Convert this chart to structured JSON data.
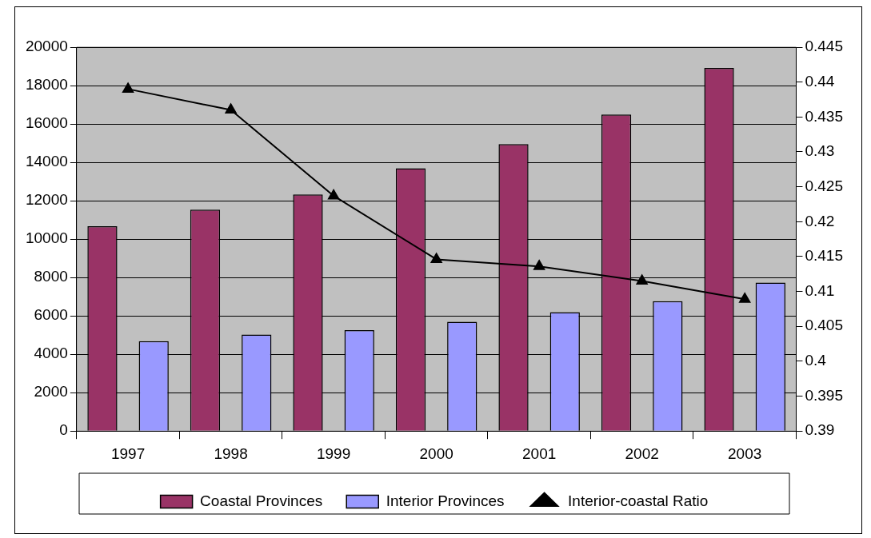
{
  "chart_data": {
    "type": "bar",
    "categories": [
      "1997",
      "1998",
      "1999",
      "2000",
      "2001",
      "2002",
      "2003"
    ],
    "series": [
      {
        "name": "Coastal Provinces",
        "color": "#993366",
        "values": [
          10670,
          11540,
          12330,
          13690,
          14950,
          16490,
          18920
        ]
      },
      {
        "name": "Interior Provinces",
        "color": "#9999ff",
        "values": [
          4680,
          5030,
          5260,
          5690,
          6190,
          6770,
          7730
        ]
      },
      {
        "name": "Interior-coastal Ratio",
        "type": "line",
        "axis": "y2",
        "color": "#000000",
        "marker": "triangle",
        "values": [
          0.439,
          0.436,
          0.4237,
          0.4146,
          0.4136,
          0.4115,
          0.4089
        ]
      }
    ],
    "ylim": [
      0,
      20000
    ],
    "yticks": [
      0,
      2000,
      4000,
      6000,
      8000,
      10000,
      12000,
      14000,
      16000,
      18000,
      20000
    ],
    "y2lim": [
      0.39,
      0.445
    ],
    "y2ticks": [
      0.39,
      0.395,
      0.4,
      0.405,
      0.41,
      0.415,
      0.42,
      0.425,
      0.43,
      0.435,
      0.44,
      0.445
    ],
    "grid": "y",
    "legend": "bottom"
  }
}
